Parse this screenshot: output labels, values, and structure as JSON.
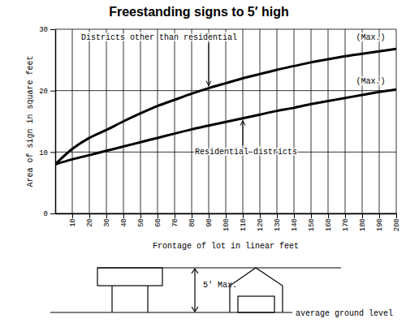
{
  "chart_data": {
    "type": "line",
    "title": "Freestanding signs to 5′ high",
    "x_label": "Frontage of lot in linear feet",
    "y_label": "Area of sign in square feet",
    "x": [
      0,
      10,
      20,
      30,
      40,
      50,
      60,
      70,
      80,
      90,
      100,
      110,
      120,
      130,
      140,
      150,
      160,
      170,
      180,
      190,
      200
    ],
    "series": [
      {
        "name": "Districts other than residential",
        "color": "#000000",
        "values": [
          8,
          10.5,
          12.3,
          13.6,
          15,
          16.3,
          17.5,
          18.5,
          19.5,
          20.4,
          21.2,
          22,
          22.7,
          23.4,
          24,
          24.6,
          25.1,
          25.6,
          26,
          26.4,
          26.8
        ]
      },
      {
        "name": "Residential districts",
        "color": "#000000",
        "values": [
          8,
          8.8,
          9.5,
          10.2,
          10.9,
          11.6,
          12.3,
          13,
          13.7,
          14.3,
          14.9,
          15.5,
          16.1,
          16.7,
          17.2,
          17.8,
          18.3,
          18.8,
          19.3,
          19.8,
          20.2
        ]
      }
    ],
    "annotations": [
      {
        "text": "(Max.)",
        "x": 185,
        "y": 28.8
      },
      {
        "text": "(Max.)",
        "x": 185,
        "y": 21.6
      }
    ],
    "xlim": [
      0,
      200
    ],
    "xticks": [
      10,
      20,
      30,
      40,
      50,
      60,
      70,
      80,
      90,
      100,
      110,
      120,
      130,
      140,
      150,
      160,
      170,
      180,
      190,
      200
    ],
    "ylim": [
      0,
      30
    ],
    "yticks": [
      0,
      10,
      20,
      30
    ],
    "grid": true
  },
  "diagram": {
    "height_label": "5′ Max.",
    "ground_label": "average ground level"
  }
}
